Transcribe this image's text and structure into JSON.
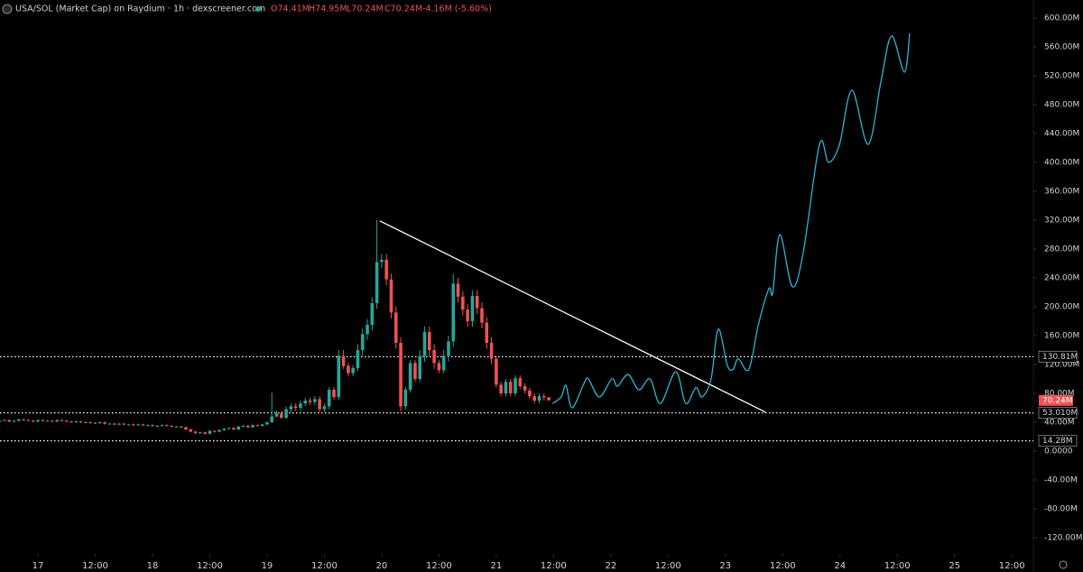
{
  "chart_data": {
    "type": "candlestick",
    "header": {
      "title": "USA/SOL (Market Cap) on Raydium · 1h · dexscreener.com",
      "open": "O74.41M",
      "high": "H74.95M",
      "low": "L70.24M",
      "close": "C70.24M",
      "change": "-4.16M (-5.60%)"
    },
    "up_color": "#26a69a",
    "down_color": "#ef5350",
    "x": [
      -8,
      -7,
      -6,
      -5,
      -4,
      -3,
      -2,
      -1,
      0,
      1,
      2,
      3,
      4,
      5,
      6,
      7,
      8,
      9,
      10,
      11,
      12,
      13,
      14,
      15,
      16,
      17,
      18,
      19,
      20,
      21,
      22,
      23,
      24,
      25,
      26,
      27,
      28,
      29,
      30,
      31,
      32,
      33,
      34,
      35,
      36,
      37,
      38,
      39,
      40,
      41,
      42,
      43,
      44,
      45,
      46,
      47,
      48,
      49,
      50,
      51,
      52,
      53,
      54,
      55,
      56,
      57,
      58,
      59,
      60,
      61,
      62,
      63,
      64,
      65,
      66,
      67,
      68,
      69,
      70,
      71,
      72,
      73,
      74,
      75,
      76,
      77,
      78,
      79,
      80,
      81,
      82,
      83,
      84,
      85,
      86,
      87,
      88,
      89,
      90,
      91,
      92,
      93,
      94,
      95,
      96,
      97,
      98,
      99,
      100,
      101,
      102,
      103,
      104,
      105,
      106,
      107
    ],
    "open": [
      41,
      42,
      43,
      41,
      42,
      44,
      43,
      42,
      41,
      43,
      42,
      42,
      41,
      43,
      42,
      41,
      40,
      41,
      40,
      40,
      39,
      39,
      40,
      38,
      38,
      37,
      38,
      37,
      37,
      36,
      37,
      36,
      36,
      35,
      35,
      36,
      35,
      34,
      34,
      33,
      30,
      27,
      25,
      26,
      24,
      28,
      27,
      29,
      31,
      32,
      30,
      34,
      35,
      33,
      36,
      35,
      37,
      40,
      48,
      52,
      46,
      58,
      62,
      60,
      66,
      70,
      68,
      72,
      58,
      62,
      85,
      75,
      132,
      118,
      108,
      115,
      140,
      162,
      175,
      205,
      262,
      265,
      238,
      192,
      150,
      62,
      85,
      122,
      100,
      132,
      165,
      140,
      122,
      112,
      132,
      152,
      232,
      214,
      196,
      180,
      215,
      198,
      178,
      150,
      128,
      92,
      80,
      96,
      80,
      101,
      90,
      84,
      76,
      70,
      76,
      74.41
    ],
    "high": [
      43,
      44,
      44,
      43,
      45,
      45,
      44,
      43,
      44,
      44,
      43,
      43,
      44,
      44,
      43,
      42,
      42,
      42,
      41,
      41,
      40,
      41,
      41,
      39,
      39,
      39,
      39,
      38,
      38,
      38,
      38,
      37,
      37,
      36,
      37,
      37,
      36,
      35,
      35,
      34,
      31,
      28,
      27,
      27,
      29,
      29,
      30,
      32,
      33,
      33,
      35,
      36,
      36,
      37,
      37,
      38,
      41,
      81,
      56,
      56,
      62,
      66,
      66,
      70,
      74,
      74,
      76,
      76,
      66,
      89,
      89,
      140,
      140,
      122,
      119,
      148,
      170,
      183,
      213,
      320,
      273,
      273,
      246,
      200,
      158,
      89,
      126,
      126,
      140,
      173,
      173,
      148,
      126,
      140,
      160,
      245,
      240,
      222,
      204,
      223,
      223,
      206,
      186,
      158,
      132,
      96,
      100,
      100,
      105,
      105,
      94,
      88,
      80,
      80,
      80,
      74.95
    ],
    "low": [
      41,
      42,
      40,
      40,
      41,
      42,
      41,
      40,
      40,
      41,
      41,
      40,
      40,
      41,
      40,
      39,
      39,
      39,
      39,
      38,
      38,
      38,
      37,
      37,
      36,
      36,
      36,
      36,
      35,
      35,
      35,
      35,
      34,
      34,
      34,
      34,
      33,
      33,
      32,
      29,
      26,
      24,
      24,
      23,
      23,
      26,
      26,
      28,
      30,
      29,
      29,
      33,
      32,
      32,
      34,
      34,
      36,
      39,
      47,
      45,
      45,
      54,
      56,
      56,
      62,
      64,
      64,
      54,
      54,
      58,
      71,
      71,
      114,
      104,
      104,
      111,
      132,
      154,
      167,
      197,
      254,
      230,
      184,
      142,
      55,
      58,
      81,
      96,
      96,
      124,
      132,
      114,
      108,
      108,
      124,
      144,
      206,
      188,
      172,
      172,
      190,
      170,
      142,
      120,
      88,
      76,
      76,
      76,
      76,
      86,
      80,
      72,
      66,
      66,
      70,
      70.24
    ],
    "close": [
      42,
      43,
      41,
      42,
      44,
      43,
      42,
      41,
      43,
      42,
      42,
      41,
      43,
      42,
      41,
      40,
      41,
      40,
      40,
      39,
      39,
      40,
      38,
      38,
      37,
      38,
      37,
      37,
      36,
      37,
      36,
      36,
      35,
      35,
      36,
      35,
      34,
      34,
      33,
      30,
      27,
      25,
      26,
      24,
      28,
      27,
      29,
      31,
      32,
      30,
      34,
      35,
      33,
      36,
      35,
      37,
      40,
      48,
      52,
      46,
      58,
      62,
      60,
      66,
      70,
      68,
      72,
      58,
      62,
      85,
      75,
      132,
      118,
      108,
      115,
      140,
      162,
      175,
      205,
      262,
      265,
      238,
      192,
      150,
      62,
      85,
      122,
      100,
      132,
      165,
      140,
      122,
      112,
      132,
      152,
      232,
      214,
      196,
      180,
      215,
      198,
      178,
      150,
      128,
      92,
      80,
      96,
      80,
      101,
      90,
      84,
      76,
      70,
      76,
      74.41,
      70.24
    ],
    "trendline": {
      "color": "#ffffff",
      "x": [
        71.6,
        152.4
      ],
      "values": [
        319,
        54
      ]
    },
    "projection": {
      "color": "#2bb5d8",
      "x": [
        107.8,
        109.6,
        110.6,
        111.9,
        114.4,
        115.3,
        117.6,
        120.2,
        121.4,
        123.6,
        125.9,
        128.2,
        130.4,
        133.6,
        135.7,
        137.8,
        139.1,
        141.0,
        142.5,
        144.4,
        145.6,
        146.7,
        148.9,
        150.9,
        153.1,
        153.9,
        155.4,
        158.0,
        160.3,
        163.7,
        165.6,
        167.9,
        170.5,
        173.9,
        176.6,
        178.8,
        181.5,
        182.6
      ],
      "values": [
        66,
        75,
        91,
        60,
        94,
        100,
        75,
        100,
        90,
        106,
        85,
        100,
        66,
        110,
        66,
        88,
        75,
        100,
        169,
        119,
        113,
        128,
        113,
        175,
        225,
        219,
        300,
        228,
        275,
        425,
        400,
        425,
        500,
        425,
        513,
        575,
        525,
        579
      ]
    },
    "levels": [
      {
        "value": 130.81,
        "label": "130.81M"
      },
      {
        "value": 53.01,
        "label": "53.010M"
      },
      {
        "value": 14.28,
        "label": "14.28M"
      }
    ],
    "last_price": {
      "value": 70.24,
      "label": "70.24M"
    },
    "xlim": [
      -7.94,
      208.5
    ],
    "xticks": [
      {
        "value": 0,
        "label": "17"
      },
      {
        "value": 12,
        "label": "12:00"
      },
      {
        "value": 24,
        "label": "18"
      },
      {
        "value": 36,
        "label": "12:00"
      },
      {
        "value": 48,
        "label": "19"
      },
      {
        "value": 60,
        "label": "12:00"
      },
      {
        "value": 72,
        "label": "20"
      },
      {
        "value": 84,
        "label": "12:00"
      },
      {
        "value": 96,
        "label": "21"
      },
      {
        "value": 108,
        "label": "12:00"
      },
      {
        "value": 120,
        "label": "22"
      },
      {
        "value": 132,
        "label": "12:00"
      },
      {
        "value": 144,
        "label": "23"
      },
      {
        "value": 156,
        "label": "12:00"
      },
      {
        "value": 168,
        "label": "24"
      },
      {
        "value": 180,
        "label": "12:00"
      },
      {
        "value": 192,
        "label": "25"
      },
      {
        "value": 204,
        "label": "12:00"
      }
    ],
    "ylim": [
      -140,
      625
    ],
    "yticks": [
      {
        "value": 600,
        "label": "600.00M"
      },
      {
        "value": 560,
        "label": "560.00M"
      },
      {
        "value": 520,
        "label": "520.00M"
      },
      {
        "value": 480,
        "label": "480.00M"
      },
      {
        "value": 440,
        "label": "440.00M"
      },
      {
        "value": 400,
        "label": "400.00M"
      },
      {
        "value": 360,
        "label": "360.00M"
      },
      {
        "value": 320,
        "label": "320.00M"
      },
      {
        "value": 280,
        "label": "280.00M"
      },
      {
        "value": 240,
        "label": "240.00M"
      },
      {
        "value": 200,
        "label": "200.00M"
      },
      {
        "value": 160,
        "label": "160.00M"
      },
      {
        "value": 120,
        "label": "120.00M"
      },
      {
        "value": 80,
        "label": "80.00M"
      },
      {
        "value": 40,
        "label": "40.00M"
      },
      {
        "value": 0,
        "label": "0.0000"
      },
      {
        "value": -40,
        "label": "-40.00M"
      },
      {
        "value": -80,
        "label": "-80.00M"
      },
      {
        "value": -120,
        "label": "-120.00M"
      }
    ]
  }
}
